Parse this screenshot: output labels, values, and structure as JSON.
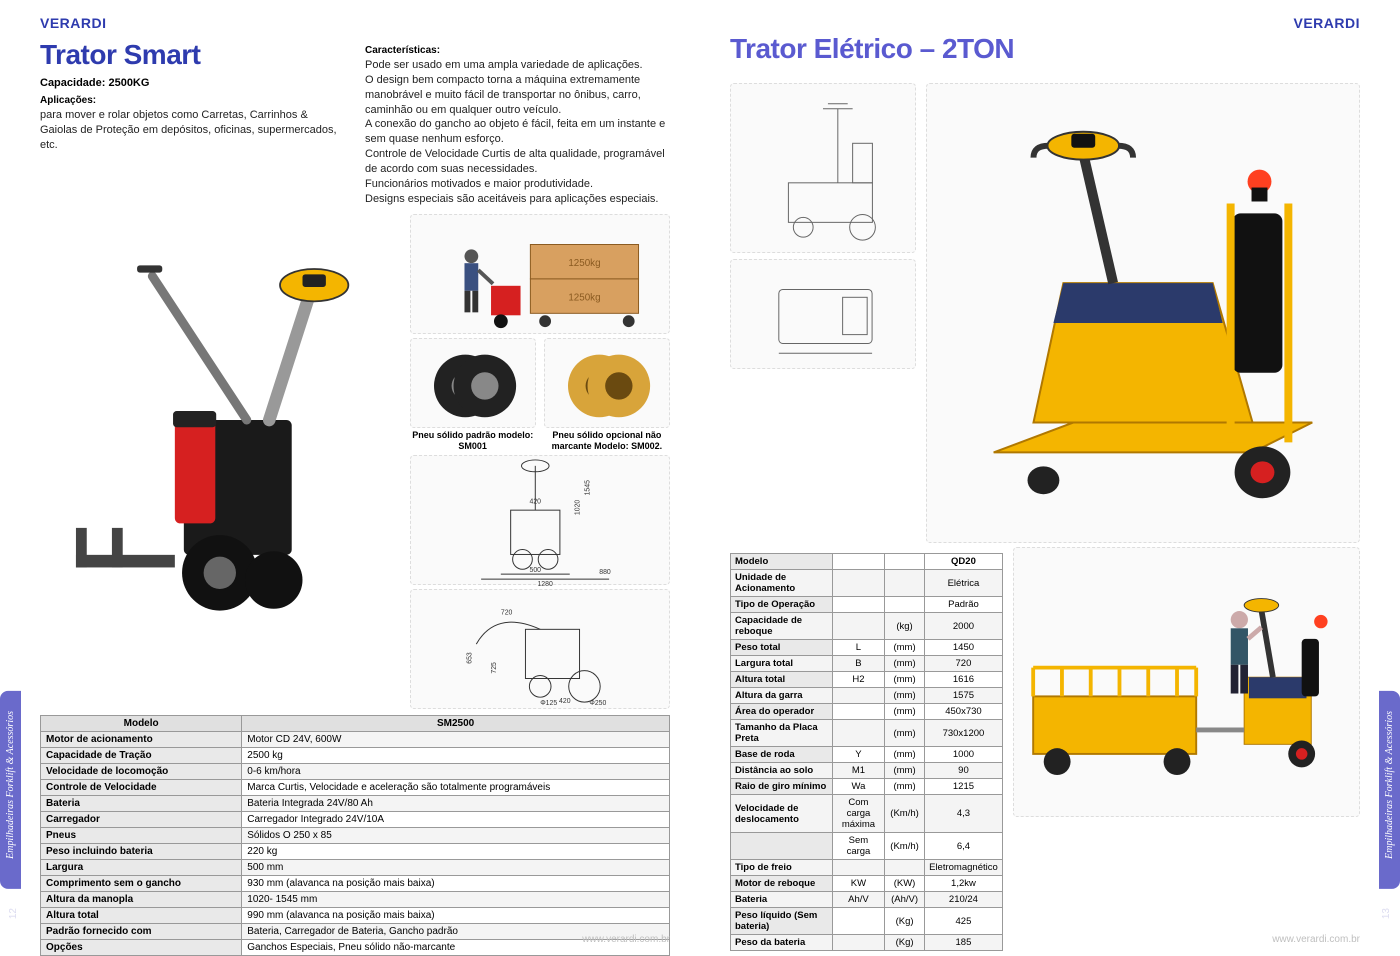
{
  "brand": "VERARDI",
  "footer_url": "www.verardi.com.br",
  "side_tab_text": "Empilhadeiras Forklift & Acessórios",
  "page_num_left": "12",
  "page_num_right": "13",
  "left": {
    "title": "Trator Smart",
    "title_color": "#2e3bae",
    "capacity_label": "Capacidade: 2500KG",
    "applications_label": "Aplicações:",
    "applications_text": "para mover e rolar objetos como Carretas, Carrinhos & Gaiolas de Proteção em depósitos, oficinas, supermercados, etc.",
    "features_label": "Características:",
    "features_text": "Pode ser usado em uma ampla variedade de aplicações.\nO design bem compacto torna a máquina extremamente manobrável e muito fácil de transportar no ônibus, carro, caminhão ou em qualquer outro veículo.\nA conexão do gancho ao objeto é fácil, feita em um instante e sem quase nenhum esforço.\nControle de Velocidade Curtis de alta qualidade, programável de acordo com suas necessidades.\nFuncionários motivados e maior produtividade.\nDesigns especiais são aceitáveis para aplicações especiais.",
    "tire1_caption": "Pneu sólido padrão modelo: SM001",
    "tire2_caption": "Pneu sólido opcional não marcante Modelo: SM002.",
    "table": {
      "header_label": "Modelo",
      "header_value": "SM2500",
      "rows": [
        [
          "Motor de acionamento",
          "Motor CD 24V, 600W"
        ],
        [
          "Capacidade de Tração",
          "2500 kg"
        ],
        [
          "Velocidade de locomoção",
          "0-6 km/hora"
        ],
        [
          "Controle de Velocidade",
          "Marca Curtis, Velocidade e aceleração são totalmente programáveis"
        ],
        [
          "Bateria",
          "Bateria Integrada 24V/80 Ah"
        ],
        [
          "Carregador",
          "Carregador Integrado 24V/10A"
        ],
        [
          "Pneus",
          "Sólidos O 250 x 85"
        ],
        [
          "Peso incluindo bateria",
          "220 kg"
        ],
        [
          "Largura",
          "500 mm"
        ],
        [
          "Comprimento sem o gancho",
          "930 mm (alavanca na posição mais baixa)"
        ],
        [
          "Altura da manopla",
          "1020- 1545 mm"
        ],
        [
          "Altura total",
          "990 mm (alavanca na posição mais baixa)"
        ],
        [
          "Padrão fornecido com",
          "Bateria, Carregador de Bateria, Gancho padrão"
        ],
        [
          "Opções",
          "Ganchos Especiais, Pneu sólido não-marcante"
        ]
      ],
      "col_widths": [
        "32%",
        "68%"
      ]
    },
    "drawing_labels": [
      "420",
      "500",
      "1280",
      "880",
      "720",
      "Φ125",
      "420",
      "Φ250",
      "1020",
      "1545",
      "725",
      "653"
    ]
  },
  "right": {
    "title": "Trator Elétrico – 2TON",
    "title_color": "#5a5ad0",
    "table": {
      "columns": [
        "Modelo",
        "",
        "",
        "QD20"
      ],
      "rows": [
        [
          "Unidade de Acionamento",
          "",
          "",
          "Elétrica"
        ],
        [
          "Tipo de Operação",
          "",
          "",
          "Padrão"
        ],
        [
          "Capacidade de reboque",
          "",
          "(kg)",
          "2000"
        ],
        [
          "Peso total",
          "L",
          "(mm)",
          "1450"
        ],
        [
          "Largura total",
          "B",
          "(mm)",
          "720"
        ],
        [
          "Altura total",
          "H2",
          "(mm)",
          "1616"
        ],
        [
          "Altura da garra",
          "",
          "(mm)",
          "1575"
        ],
        [
          "Área do operador",
          "",
          "(mm)",
          "450x730"
        ],
        [
          "Tamanho da Placa Preta",
          "",
          "(mm)",
          "730x1200"
        ],
        [
          "Base de roda",
          "Y",
          "(mm)",
          "1000"
        ],
        [
          "Distância ao solo",
          "M1",
          "(mm)",
          "90"
        ],
        [
          "Raio de giro mínimo",
          "Wa",
          "(mm)",
          "1215"
        ],
        [
          "Velocidade de deslocamento",
          "Com carga máxima",
          "(Km/h)",
          "4,3"
        ],
        [
          "",
          "Sem carga",
          "(Km/h)",
          "6,4"
        ],
        [
          "Tipo de freio",
          "",
          "",
          "Eletromagnético"
        ],
        [
          "Motor de reboque",
          "KW",
          "(KW)",
          "1,2kw"
        ],
        [
          "Bateria",
          "Ah/V",
          "(Ah/V)",
          "210/24"
        ],
        [
          "Peso líquido (Sem bateria)",
          "",
          "(Kg)",
          "425"
        ],
        [
          "Peso da bateria",
          "",
          "(Kg)",
          "185"
        ]
      ],
      "col_widths": [
        "40%",
        "20%",
        "15%",
        "25%"
      ]
    }
  },
  "colors": {
    "body_yellow": "#f4b500",
    "body_dark": "#2b3a6b",
    "wheel": "#222222",
    "red": "#d62020",
    "gray_metal": "#bababa"
  }
}
